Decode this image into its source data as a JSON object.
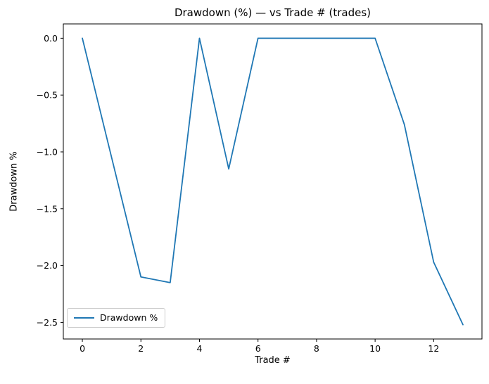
{
  "chart_data": {
    "type": "line",
    "title": "Drawdown (%) — vs Trade # (trades)",
    "xlabel": "Trade #",
    "ylabel": "Drawdown %",
    "x": [
      0,
      1,
      2,
      3,
      4,
      5,
      6,
      7,
      8,
      9,
      10,
      11,
      12,
      13
    ],
    "series": [
      {
        "name": "Drawdown %",
        "values": [
          0.0,
          -1.05,
          -2.1,
          -2.15,
          0.0,
          -1.15,
          0.0,
          0.0,
          0.0,
          0.0,
          0.0,
          -0.76,
          -1.97,
          -2.52
        ],
        "color": "#1f77b4"
      }
    ],
    "xlim": [
      -0.65,
      13.65
    ],
    "ylim": [
      -2.646,
      0.126
    ],
    "x_ticks": [
      0,
      2,
      4,
      6,
      8,
      10,
      12
    ],
    "x_tick_labels": [
      "0",
      "2",
      "4",
      "6",
      "8",
      "10",
      "12"
    ],
    "y_ticks": [
      0.0,
      -0.5,
      -1.0,
      -1.5,
      -2.0,
      -2.5
    ],
    "y_tick_labels": [
      "0.0",
      "−0.5",
      "−1.0",
      "−1.5",
      "−2.0",
      "−2.5"
    ],
    "grid": false,
    "legend": {
      "position": "lower-left",
      "entries": [
        {
          "label": "Drawdown %",
          "color": "#1f77b4"
        }
      ]
    },
    "colors": {
      "line": "#1f77b4",
      "axes": "#000000",
      "background": "#ffffff"
    }
  }
}
